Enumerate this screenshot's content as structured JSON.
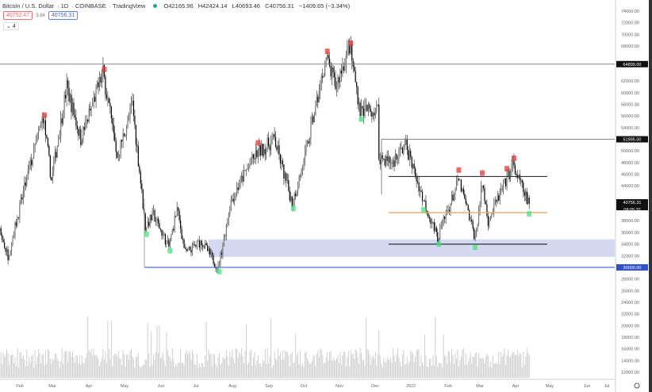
{
  "header": {
    "symbol": "Bitcoin / U.S. Dollar",
    "interval": "1D",
    "exchange": "COINBASE",
    "source": "TradingView",
    "open": "O42165.96",
    "high": "H42424.14",
    "low": "L40693.46",
    "close": "C40756.31",
    "change": "−1409.65 (−3.34%)",
    "bid": "40752.47",
    "spread": "3.84",
    "ask": "40756.31",
    "indicators_toggle": "4"
  },
  "colors": {
    "up": "#000000",
    "down": "#000000",
    "sell_marker": "#e53935",
    "buy_marker": "#4cdf7f",
    "band": "#c9d0ee",
    "support_line": "#3f5fc7",
    "orange_line": "#f0a868",
    "level_line": "#333333"
  },
  "chart_data": {
    "type": "candlestick",
    "y_axis": {
      "min": 12000,
      "max": 74000,
      "step": 2000,
      "position": "right"
    },
    "x_ticks": [
      "Feb",
      "Mar",
      "Apr",
      "May",
      "Jun",
      "Jul",
      "Aug",
      "Sep",
      "Oct",
      "Nov",
      "Dec",
      "2022",
      "Feb",
      "Mar",
      "Apr",
      "May",
      "Jun",
      "Jul"
    ],
    "price_anchors": [
      [
        "2021-01-01",
        29000
      ],
      [
        "2021-01-08",
        40000
      ],
      [
        "2021-01-22",
        32000
      ],
      [
        "2021-02-08",
        46000
      ],
      [
        "2021-02-21",
        56000
      ],
      [
        "2021-02-28",
        45000
      ],
      [
        "2021-03-13",
        61000
      ],
      [
        "2021-03-25",
        52000
      ],
      [
        "2021-04-13",
        63500
      ],
      [
        "2021-04-25",
        49000
      ],
      [
        "2021-05-08",
        58000
      ],
      [
        "2021-05-19",
        37000
      ],
      [
        "2021-05-26",
        39000
      ],
      [
        "2021-06-08",
        33500
      ],
      [
        "2021-06-15",
        40000
      ],
      [
        "2021-06-22",
        32500
      ],
      [
        "2021-07-06",
        34500
      ],
      [
        "2021-07-20",
        29800
      ],
      [
        "2021-07-31",
        41500
      ],
      [
        "2021-08-14",
        47000
      ],
      [
        "2021-08-22",
        49500
      ],
      [
        "2021-09-06",
        52000
      ],
      [
        "2021-09-21",
        41000
      ],
      [
        "2021-10-01",
        48000
      ],
      [
        "2021-10-20",
        66000
      ],
      [
        "2021-10-28",
        61000
      ],
      [
        "2021-11-09",
        68000
      ],
      [
        "2021-11-18",
        57000
      ],
      [
        "2021-12-03",
        57000
      ],
      [
        "2021-12-04",
        49000
      ],
      [
        "2021-12-15",
        48000
      ],
      [
        "2021-12-27",
        51000
      ],
      [
        "2022-01-10",
        42000
      ],
      [
        "2022-01-23",
        35000
      ],
      [
        "2022-02-10",
        45000
      ],
      [
        "2022-02-24",
        35000
      ],
      [
        "2022-03-02",
        44500
      ],
      [
        "2022-03-07",
        38000
      ],
      [
        "2022-03-28",
        47500
      ],
      [
        "2022-04-11",
        40756.31
      ]
    ],
    "levels": {
      "resistance_high": 64899.0,
      "resistance_mid": 51995.0,
      "range_top": 45600,
      "range_mid": 39400,
      "range_bottom": 34000,
      "support": 30000.0,
      "demand_zone": [
        31800,
        34800
      ]
    },
    "price_labels": {
      "high_level": "64899.00",
      "mid_level": "51995.00",
      "last_price": "40756.31",
      "countdown": "08:05:32",
      "support": "30000.00"
    },
    "markers": [
      [
        "2021-01-10",
        "sell"
      ],
      [
        "2021-02-22",
        "sell"
      ],
      [
        "2021-04-14",
        "sell"
      ],
      [
        "2021-05-20",
        "buy"
      ],
      [
        "2021-06-09",
        "buy"
      ],
      [
        "2021-07-21",
        "buy"
      ],
      [
        "2021-08-23",
        "sell"
      ],
      [
        "2021-09-22",
        "buy"
      ],
      [
        "2021-10-21",
        "sell"
      ],
      [
        "2021-11-10",
        "sell"
      ],
      [
        "2021-11-19",
        "buy"
      ],
      [
        "2022-01-11",
        "buy"
      ],
      [
        "2022-01-24",
        "buy"
      ],
      [
        "2022-02-10",
        "sell"
      ],
      [
        "2022-02-24",
        "buy"
      ],
      [
        "2022-03-02",
        "sell"
      ],
      [
        "2022-03-23",
        "sell"
      ],
      [
        "2022-03-29",
        "sell"
      ],
      [
        "2022-04-11",
        "buy"
      ]
    ]
  }
}
